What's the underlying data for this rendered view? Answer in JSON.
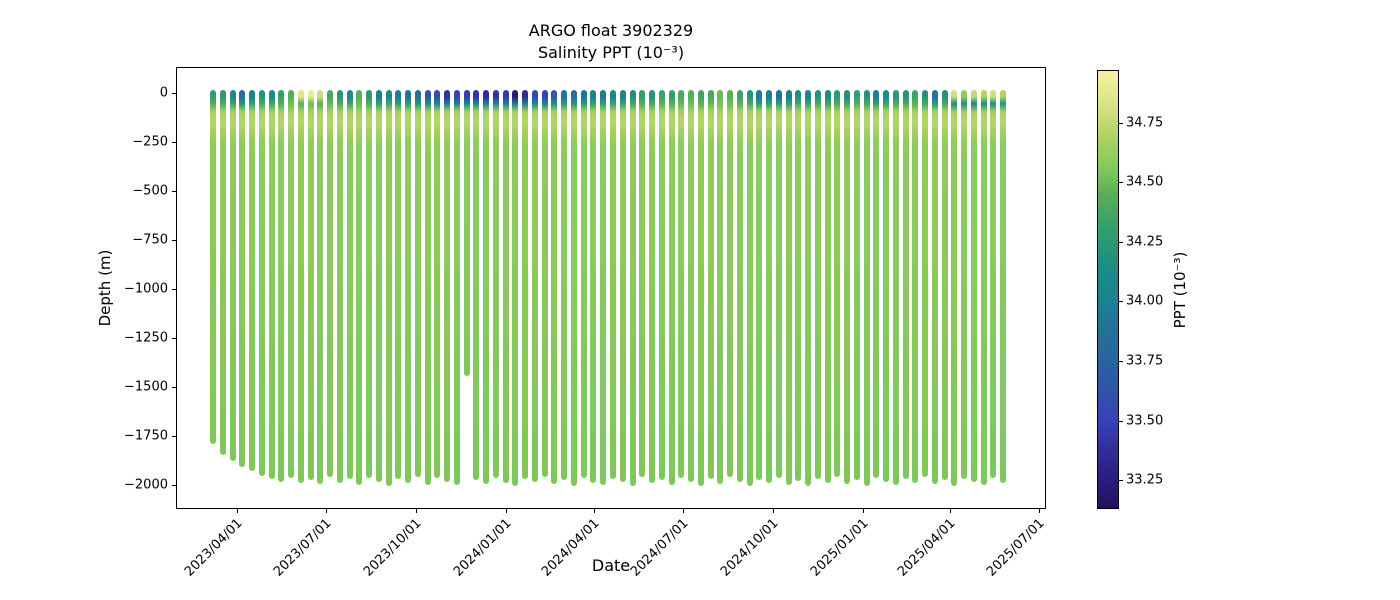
{
  "figure": {
    "title": "ARGO float 3902329",
    "subtitle": "Salinity PPT (10⁻³)",
    "xlabel": "Date",
    "ylabel": "Depth (m)"
  },
  "chart_data": {
    "type": "scatter",
    "title": "ARGO float 3902329",
    "subtitle": "Salinity PPT (10⁻³)",
    "xlabel": "Date",
    "ylabel": "Depth (m)",
    "grid": false,
    "x_ticks": [
      "2023/04/01",
      "2023/07/01",
      "2023/10/01",
      "2024/01/01",
      "2024/04/01",
      "2024/07/01",
      "2024/10/01",
      "2025/01/01",
      "2025/04/01",
      "2025/07/01"
    ],
    "y_ticks": [
      0,
      -250,
      -500,
      -750,
      -1000,
      -1250,
      -1500,
      -1750,
      -2000
    ],
    "x_range": [
      "2023-01-28",
      "2025-07-08"
    ],
    "y_range": [
      -2123,
      131
    ],
    "colorbar": {
      "label": "PPT (10⁻³)",
      "ticks": [
        33.25,
        33.5,
        33.75,
        34.0,
        34.25,
        34.5,
        34.75
      ],
      "vmin": 33.13,
      "vmax": 34.97,
      "colormap_name": "haline-like",
      "colormap": [
        [
          0.0,
          "#24105e"
        ],
        [
          0.07,
          "#2c1e7f"
        ],
        [
          0.14,
          "#33309c"
        ],
        [
          0.2,
          "#3742b8"
        ],
        [
          0.28,
          "#2e56a6"
        ],
        [
          0.36,
          "#28689e"
        ],
        [
          0.45,
          "#1f7b94"
        ],
        [
          0.54,
          "#1b8c86"
        ],
        [
          0.63,
          "#2f9c70"
        ],
        [
          0.72,
          "#5bae58"
        ],
        [
          0.77,
          "#7ec75c"
        ],
        [
          0.86,
          "#b4d466"
        ],
        [
          0.94,
          "#e2e78d"
        ],
        [
          1.0,
          "#f7f0a2"
        ]
      ]
    },
    "deep_ppt": 34.55,
    "salinity_max_ppt": 34.72,
    "salinity_max_depth_m": -150,
    "profile_fields": [
      "date",
      "bottom_depth_m",
      "surface_ppt",
      "subsurface_ppt_optional"
    ],
    "profiles": [
      [
        "2023-03-07",
        -1775,
        34.3
      ],
      [
        "2023-03-17",
        -1830,
        34.25
      ],
      [
        "2023-03-27",
        -1865,
        34.1
      ],
      [
        "2023-04-06",
        -1895,
        33.85
      ],
      [
        "2023-04-16",
        -1915,
        34.05
      ],
      [
        "2023-04-26",
        -1940,
        34.2
      ],
      [
        "2023-05-06",
        -1955,
        34.1
      ],
      [
        "2023-05-16",
        -1970,
        34.3
      ],
      [
        "2023-05-26",
        -1950,
        34.45
      ],
      [
        "2023-06-05",
        -1975,
        34.85,
        34.45
      ],
      [
        "2023-06-15",
        -1960,
        34.9,
        34.5
      ],
      [
        "2023-06-25",
        -1980,
        34.8,
        34.45
      ],
      [
        "2023-07-05",
        -1945,
        34.4
      ],
      [
        "2023-07-15",
        -1975,
        34.25
      ],
      [
        "2023-07-25",
        -1955,
        34.1
      ],
      [
        "2023-08-04",
        -1985,
        34.45
      ],
      [
        "2023-08-14",
        -1950,
        34.25
      ],
      [
        "2023-08-24",
        -1970,
        34.0
      ],
      [
        "2023-09-03",
        -1990,
        34.1
      ],
      [
        "2023-09-13",
        -1955,
        33.95
      ],
      [
        "2023-09-23",
        -1975,
        33.9
      ],
      [
        "2023-10-03",
        -1945,
        33.85
      ],
      [
        "2023-10-13",
        -1985,
        33.65
      ],
      [
        "2023-10-23",
        -1950,
        33.6
      ],
      [
        "2023-11-02",
        -1970,
        33.4
      ],
      [
        "2023-11-12",
        -1985,
        33.5
      ],
      [
        "2023-11-22",
        -1430,
        33.45
      ],
      [
        "2023-12-02",
        -1960,
        33.4
      ],
      [
        "2023-12-12",
        -1980,
        33.35
      ],
      [
        "2023-12-22",
        -1950,
        33.4
      ],
      [
        "2024-01-01",
        -1975,
        33.45
      ],
      [
        "2024-01-11",
        -1990,
        33.2
      ],
      [
        "2024-01-21",
        -1955,
        33.35
      ],
      [
        "2024-01-31",
        -1970,
        33.55
      ],
      [
        "2024-02-10",
        -1945,
        33.5
      ],
      [
        "2024-02-20",
        -1980,
        33.7
      ],
      [
        "2024-03-01",
        -1960,
        33.9
      ],
      [
        "2024-03-11",
        -1990,
        33.8
      ],
      [
        "2024-03-21",
        -1950,
        33.9
      ],
      [
        "2024-03-31",
        -1975,
        34.0
      ],
      [
        "2024-04-10",
        -1985,
        33.95
      ],
      [
        "2024-04-20",
        -1955,
        34.05
      ],
      [
        "2024-04-30",
        -1970,
        34.05
      ],
      [
        "2024-05-10",
        -1990,
        34.15
      ],
      [
        "2024-05-20",
        -1945,
        34.3
      ],
      [
        "2024-05-30",
        -1975,
        34.2
      ],
      [
        "2024-06-09",
        -1960,
        34.35
      ],
      [
        "2024-06-19",
        -1985,
        34.3
      ],
      [
        "2024-06-29",
        -1950,
        34.4
      ],
      [
        "2024-07-09",
        -1970,
        34.45
      ],
      [
        "2024-07-19",
        -1990,
        34.35
      ],
      [
        "2024-07-29",
        -1955,
        34.4
      ],
      [
        "2024-08-08",
        -1980,
        34.5
      ],
      [
        "2024-08-18",
        -1945,
        34.45
      ],
      [
        "2024-08-28",
        -1970,
        34.35
      ],
      [
        "2024-09-07",
        -1990,
        34.2
      ],
      [
        "2024-09-17",
        -1960,
        33.95
      ],
      [
        "2024-09-27",
        -1975,
        34.0
      ],
      [
        "2024-10-07",
        -1950,
        33.9
      ],
      [
        "2024-10-17",
        -1985,
        34.0
      ],
      [
        "2024-10-27",
        -1965,
        34.15
      ],
      [
        "2024-11-06",
        -1990,
        34.05
      ],
      [
        "2024-11-16",
        -1955,
        34.2
      ],
      [
        "2024-11-26",
        -1975,
        34.1
      ],
      [
        "2024-12-06",
        -1945,
        34.25
      ],
      [
        "2024-12-16",
        -1980,
        34.15
      ],
      [
        "2024-12-26",
        -1960,
        34.3
      ],
      [
        "2025-01-05",
        -1990,
        34.2
      ],
      [
        "2025-01-15",
        -1950,
        33.95
      ],
      [
        "2025-01-25",
        -1970,
        34.1
      ],
      [
        "2025-02-04",
        -1985,
        34.25
      ],
      [
        "2025-02-14",
        -1955,
        34.2
      ],
      [
        "2025-02-24",
        -1975,
        34.35
      ],
      [
        "2025-03-06",
        -1945,
        34.2
      ],
      [
        "2025-03-16",
        -1980,
        33.9
      ],
      [
        "2025-03-26",
        -1960,
        34.2
      ],
      [
        "2025-04-05",
        -1990,
        34.8,
        34.1
      ],
      [
        "2025-04-15",
        -1955,
        34.6,
        34.15
      ],
      [
        "2025-04-25",
        -1970,
        34.75,
        34.05
      ],
      [
        "2025-05-05",
        -1985,
        34.7,
        34.1
      ],
      [
        "2025-05-15",
        -1950,
        34.8,
        34.15
      ],
      [
        "2025-05-25",
        -1975,
        34.7,
        34.2
      ]
    ]
  }
}
